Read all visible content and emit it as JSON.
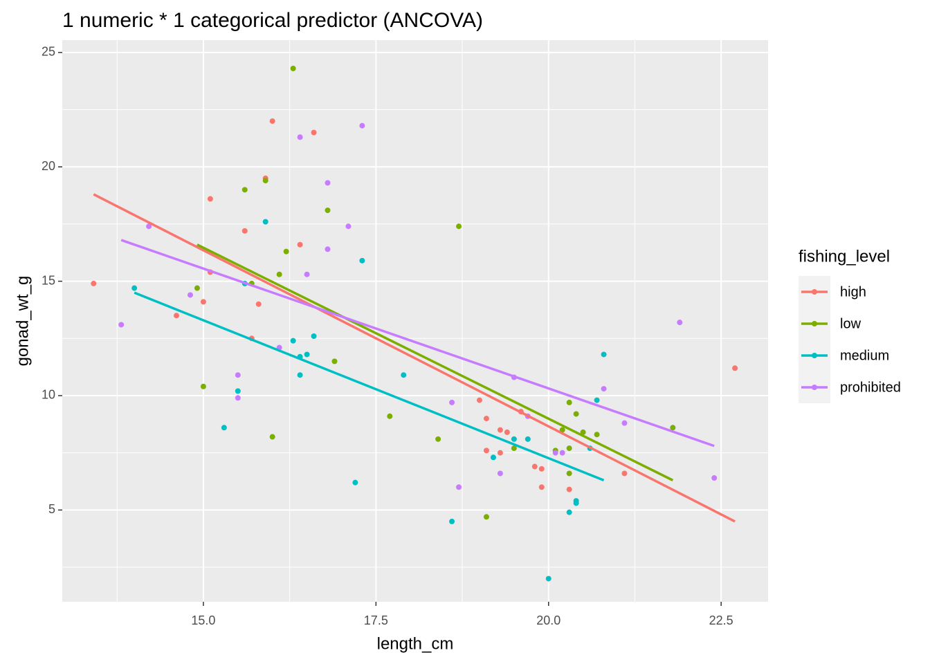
{
  "chart_data": {
    "type": "scatter",
    "title": "1 numeric * 1 categorical predictor (ANCOVA)",
    "x_label": "length_cm",
    "y_label": "gonad_wt_g",
    "legend_title": "fishing_level",
    "xlim": [
      12.956,
      23.18
    ],
    "ylim": [
      0.99,
      25.54
    ],
    "xticks": [
      {
        "value": 15,
        "label": "15.0"
      },
      {
        "value": 17.5,
        "label": "17.5"
      },
      {
        "value": 20,
        "label": "20.0"
      },
      {
        "value": 22.5,
        "label": "22.5"
      }
    ],
    "yticks": [
      5,
      10,
      15,
      20,
      25
    ],
    "grid": true,
    "series": [
      {
        "name": "high",
        "color": "#F8766D",
        "x": [
          13.41,
          14.61,
          15.0,
          15.1,
          15.1,
          15.6,
          15.7,
          15.8,
          15.9,
          16.0,
          16.4,
          16.6,
          19.0,
          19.1,
          19.1,
          19.3,
          19.3,
          19.4,
          19.6,
          19.8,
          19.9,
          19.9,
          20.3,
          21.1,
          22.7
        ],
        "y": [
          14.9,
          13.5,
          14.1,
          18.6,
          15.4,
          17.2,
          12.5,
          14.0,
          19.5,
          22.0,
          16.6,
          21.5,
          9.8,
          9.0,
          7.6,
          8.5,
          7.5,
          8.4,
          9.3,
          6.9,
          6.8,
          6.0,
          5.9,
          6.6,
          11.2
        ],
        "line_x": [
          13.41,
          22.7
        ],
        "line_y": [
          18.8,
          4.5
        ]
      },
      {
        "name": "low",
        "color": "#7CAE00",
        "x": [
          14.91,
          15.0,
          15.6,
          15.7,
          15.9,
          16.0,
          16.1,
          16.2,
          16.3,
          16.8,
          16.9,
          17.7,
          18.4,
          18.7,
          19.1,
          19.5,
          20.1,
          20.2,
          20.3,
          20.3,
          20.3,
          20.4,
          20.5,
          20.7,
          21.8
        ],
        "y": [
          14.7,
          10.4,
          19.0,
          14.9,
          19.4,
          8.2,
          15.3,
          16.3,
          24.3,
          18.1,
          11.5,
          9.1,
          8.1,
          17.4,
          4.7,
          7.7,
          7.6,
          8.5,
          9.7,
          7.7,
          6.6,
          9.2,
          8.4,
          8.3,
          8.6
        ],
        "line_x": [
          14.91,
          21.8
        ],
        "line_y": [
          16.6,
          6.3
        ]
      },
      {
        "name": "medium",
        "color": "#00BFC4",
        "x": [
          14.0,
          15.3,
          15.5,
          15.6,
          15.9,
          16.3,
          16.4,
          16.4,
          16.5,
          16.6,
          17.2,
          17.3,
          17.9,
          18.6,
          19.2,
          19.5,
          19.7,
          20.0,
          20.3,
          20.4,
          20.4,
          20.6,
          20.7,
          20.8
        ],
        "y": [
          14.7,
          8.6,
          10.2,
          14.9,
          17.6,
          12.4,
          11.7,
          10.9,
          11.8,
          12.6,
          6.2,
          15.9,
          10.9,
          4.5,
          7.3,
          8.1,
          8.1,
          2.0,
          4.9,
          5.3,
          5.4,
          7.7,
          9.8,
          11.8
        ],
        "line_x": [
          14.0,
          20.8
        ],
        "line_y": [
          14.5,
          6.3
        ]
      },
      {
        "name": "prohibited",
        "color": "#C77CFF",
        "x": [
          13.81,
          14.21,
          14.81,
          15.5,
          15.5,
          16.1,
          16.4,
          16.5,
          16.8,
          16.8,
          17.1,
          17.3,
          18.6,
          18.7,
          19.3,
          19.5,
          19.7,
          20.1,
          20.2,
          20.8,
          21.1,
          21.9,
          22.4
        ],
        "y": [
          13.1,
          17.4,
          14.4,
          10.9,
          9.9,
          12.1,
          21.3,
          15.3,
          19.3,
          16.4,
          17.4,
          21.8,
          9.7,
          6.0,
          6.6,
          10.8,
          9.1,
          7.5,
          7.5,
          10.3,
          8.8,
          13.2,
          6.4
        ],
        "line_x": [
          13.81,
          22.4
        ],
        "line_y": [
          16.8,
          7.8
        ]
      }
    ]
  }
}
